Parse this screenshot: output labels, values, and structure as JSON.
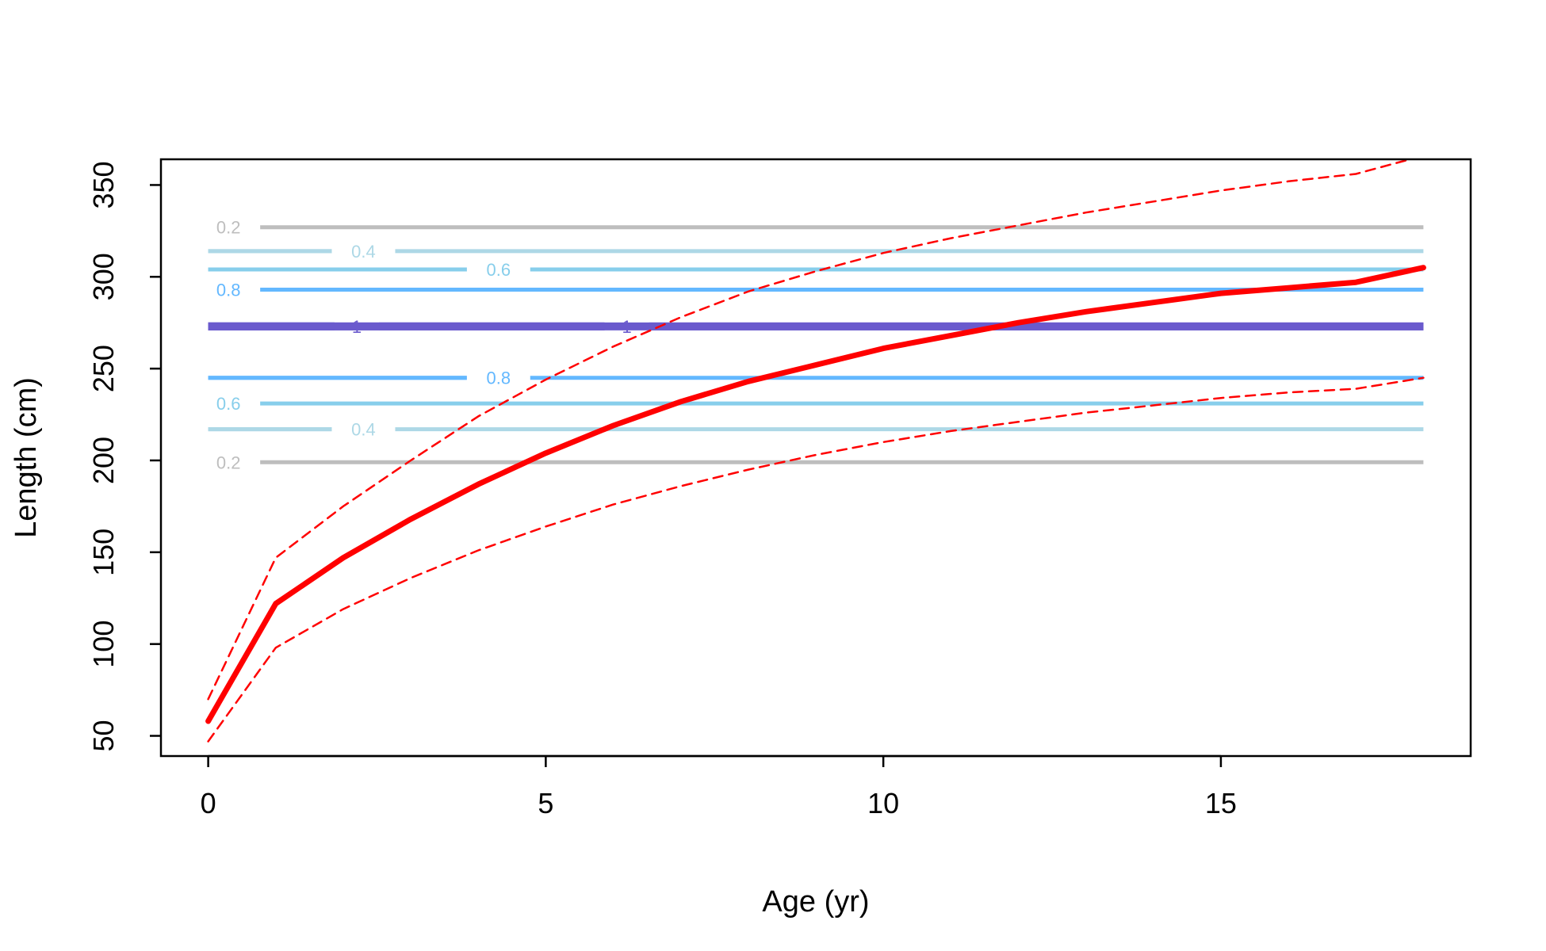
{
  "chart_data": {
    "type": "line",
    "xlabel": "Age (yr)",
    "ylabel": "Length (cm)",
    "xlim": [
      -0.7,
      18.7
    ],
    "ylim": [
      39,
      364
    ],
    "x_ticks": [
      0,
      5,
      10,
      15
    ],
    "y_ticks": [
      50,
      100,
      150,
      200,
      250,
      300,
      350
    ],
    "grid": false,
    "series": [
      {
        "style": "solid-thick",
        "color": "#ff0000",
        "x": [
          0,
          1,
          2,
          3,
          4,
          5,
          6,
          7,
          8,
          9,
          10,
          11,
          12,
          13,
          14,
          15,
          16,
          17,
          18
        ],
        "values": [
          58,
          122,
          147,
          168,
          187,
          204,
          219,
          232,
          243,
          252,
          261,
          268,
          275,
          281,
          286,
          291,
          294,
          297,
          305
        ]
      },
      {
        "style": "dashed",
        "color": "#ff0000",
        "x": [
          0,
          1,
          2,
          3,
          4,
          5,
          6,
          7,
          8,
          9,
          10,
          11,
          12,
          13,
          14,
          15,
          16,
          17,
          18
        ],
        "values": [
          70,
          147,
          175,
          200,
          224,
          244,
          262,
          278,
          292,
          303,
          313,
          321,
          328,
          335,
          341,
          347,
          352,
          356,
          366
        ]
      },
      {
        "style": "dashed",
        "color": "#ff0000",
        "x": [
          0,
          1,
          2,
          3,
          4,
          5,
          6,
          7,
          8,
          9,
          10,
          11,
          12,
          13,
          14,
          15,
          16,
          17,
          18
        ],
        "values": [
          47,
          98,
          119,
          136,
          151,
          164,
          176,
          186,
          195,
          203,
          210,
          216,
          221,
          226,
          230,
          234,
          237,
          239,
          245
        ]
      }
    ],
    "contours": [
      {
        "y": 327,
        "label": "0.2",
        "color": "#bebebe",
        "label_x": 0.3,
        "width": 5
      },
      {
        "y": 314,
        "label": "0.4",
        "color": "#add8e6",
        "label_x": 2.3,
        "width": 5
      },
      {
        "y": 304,
        "label": "0.6",
        "color": "#87ceeb",
        "label_x": 4.3,
        "width": 5
      },
      {
        "y": 293,
        "label": "0.8",
        "color": "#63b8ff",
        "label_x": 0.3,
        "width": 5
      },
      {
        "y": 273,
        "label": "1",
        "color": "#6a5acd",
        "label_x": 2.2,
        "width": 10
      },
      {
        "y": 273,
        "label": "1",
        "color": "#6a5acd",
        "label_x": 6.2,
        "width": 10
      },
      {
        "y": 245,
        "label": "0.8",
        "color": "#63b8ff",
        "label_x": 4.3,
        "width": 5
      },
      {
        "y": 231,
        "label": "0.6",
        "color": "#87ceeb",
        "label_x": 0.3,
        "width": 5
      },
      {
        "y": 217,
        "label": "0.4",
        "color": "#add8e6",
        "label_x": 2.3,
        "width": 5
      },
      {
        "y": 199,
        "label": "0.2",
        "color": "#bebebe",
        "label_x": 0.3,
        "width": 5
      }
    ],
    "contour_xrange": [
      0,
      18
    ]
  }
}
